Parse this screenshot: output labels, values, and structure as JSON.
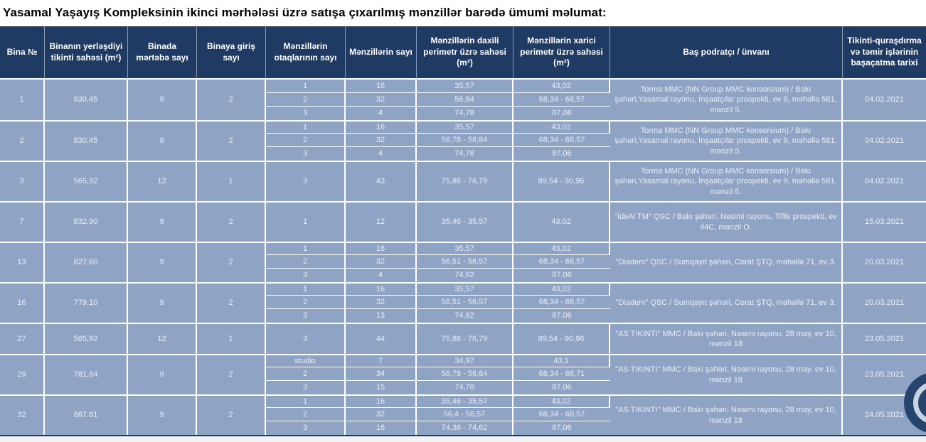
{
  "page": {
    "title": "Yasamal Yaşayış Kompleksinin ikinci mərhələsi üzrə satışa çıxarılmış mənzillər barədə ümumi məlumat:"
  },
  "colors": {
    "header_navy": "#1f3a63",
    "row_blue": "#8fa4c5",
    "cell_text": "#e9eef5",
    "grid_line": "#ffffff",
    "page_background": "#f2f3f5"
  },
  "table": {
    "columns": [
      "Bina №",
      "Binanın yerləşdiyi tikinti sahəsi (m²)",
      "Binada mərtəbə sayı",
      "Binaya giriş sayı",
      "Mənzillərin otaqlarının sayı",
      "Mənzillərin sayı",
      "Mənzillərin daxili perimetr üzrə sahəsi (m²)",
      "Mənzillərin xarici perimetr üzrə sahəsi (m²)",
      "Baş podratçı / ünvanı",
      "Tikinti-quraşdırma və təmir işlərinin başaçatma tarixi"
    ],
    "rows": [
      {
        "bina": "1",
        "sahe": "830,45",
        "mertebe": "9",
        "giris": "2",
        "subrows": [
          {
            "otaq": "1",
            "say": "16",
            "daxili": "35,57",
            "xarici": "43,02"
          },
          {
            "otaq": "2",
            "say": "32",
            "daxili": "56,84",
            "xarici": "68,34 - 68,57"
          },
          {
            "otaq": "3",
            "say": "4",
            "daxili": "74,78",
            "xarici": "87,06"
          }
        ],
        "podratci": "Torma MMC (NN Group MMC konsorsium) / Bakı şəhəri,Yasamal rayonu, İnşaatçılar prospekti, ev 9, məhəllə 581, mənzil 5.",
        "tarix": "04.02.2021"
      },
      {
        "bina": "2",
        "sahe": "830,45",
        "mertebe": "9",
        "giris": "2",
        "subrows": [
          {
            "otaq": "1",
            "say": "16",
            "daxili": "35,57",
            "xarici": "43,02"
          },
          {
            "otaq": "2",
            "say": "32",
            "daxili": "56,78 - 56,84",
            "xarici": "68,34 - 68,57"
          },
          {
            "otaq": "3",
            "say": "4",
            "daxili": "74,78",
            "xarici": "87,06"
          }
        ],
        "podratci": "Torma MMC (NN Group MMC konsorsium) / Bakı şəhəri,Yasamal rayonu, İnşaatçılar prospekti, ev 9, məhəllə 581, mənzil 5.",
        "tarix": "04.02.2021"
      },
      {
        "bina": "3",
        "sahe": "565,92",
        "mertebe": "12",
        "giris": "1",
        "subrows": [
          {
            "otaq": "3",
            "say": "43",
            "daxili": "75,88 - 76,79",
            "xarici": "89,54 - 90,96"
          }
        ],
        "podratci": "Torma MMC (NN Group MMC konsorsium) / Bakı şəhəri,Yasamal rayonu, İnşaatçılar prospekti, ev 9, məhəllə 581, mənzil 5.",
        "tarix": "04.02.2021"
      },
      {
        "bina": "7",
        "sahe": "832.90",
        "mertebe": "9",
        "giris": "2",
        "subrows": [
          {
            "otaq": "1",
            "say": "12",
            "daxili": "35,46 - 35,57",
            "xarici": "43,02"
          }
        ],
        "podratci": "\"İdeAl TM\" QSC / Bakı şəhəri, Nəsimi rayonu, Tiflis prospekti, ev 44C, mənzil O.",
        "tarix": "15.03.2021"
      },
      {
        "bina": "13",
        "sahe": "827.60",
        "mertebe": "9",
        "giris": "2",
        "subrows": [
          {
            "otaq": "1",
            "say": "16",
            "daxili": "35,57",
            "xarici": "43,02"
          },
          {
            "otaq": "2",
            "say": "32",
            "daxili": "56,51 - 56,57",
            "xarici": "68,34 - 68,57"
          },
          {
            "otaq": "3",
            "say": "4",
            "daxili": "74,62",
            "xarici": "87,06"
          }
        ],
        "podratci": "\"Diadem\" QSC / Sumqayıt şəhəri, Corat ŞTQ, məhəllə 71, ev 3.",
        "tarix": "20.03.2021"
      },
      {
        "bina": "16",
        "sahe": "779.10",
        "mertebe": "9",
        "giris": "2",
        "subrows": [
          {
            "otaq": "1",
            "say": "16",
            "daxili": "35,57",
            "xarici": "43,02"
          },
          {
            "otaq": "2",
            "say": "32",
            "daxili": "56,51 - 56,57",
            "xarici": "68,34 - 68,57"
          },
          {
            "otaq": "3",
            "say": "13",
            "daxili": "74,62",
            "xarici": "87,06"
          }
        ],
        "podratci": "\"Diadem\" QSC / Sumqayıt şəhəri, Corat ŞTQ, məhəllə 71, ev 3.",
        "tarix": "20.03.2021"
      },
      {
        "bina": "27",
        "sahe": "565,92",
        "mertebe": "12",
        "giris": "1",
        "subrows": [
          {
            "otaq": "3",
            "say": "44",
            "daxili": "75,88 - 76,79",
            "xarici": "89,54 - 90,96"
          }
        ],
        "podratci": "\"AS TIKINTI\" MMC / Bakı şəhəri, Nəsimi rayonu, 28 may, ev 10, mənzil 18",
        "tarix": "23.05.2021"
      },
      {
        "bina": "29",
        "sahe": "781,84",
        "mertebe": "9",
        "giris": "2",
        "subrows": [
          {
            "otaq": "studio",
            "say": "7",
            "daxili": "34,97",
            "xarici": "43,1"
          },
          {
            "otaq": "2",
            "say": "34",
            "daxili": "56,78 - 56,84",
            "xarici": "68,34 - 68,71"
          },
          {
            "otaq": "3",
            "say": "15",
            "daxili": "74,78",
            "xarici": "87,06"
          }
        ],
        "podratci": "\"AS TIKINTI\" MMC / Bakı şəhəri, Nəsimi rayonu, 28 may, ev 10, mənzil 18",
        "tarix": "23.05.2021"
      },
      {
        "bina": "32",
        "sahe": "867.81",
        "mertebe": "9",
        "giris": "2",
        "subrows": [
          {
            "otaq": "1",
            "say": "16",
            "daxili": "35,46 - 35,57",
            "xarici": "43,02"
          },
          {
            "otaq": "2",
            "say": "32",
            "daxili": "56,4 - 56,57",
            "xarici": "68,34 - 68,57"
          },
          {
            "otaq": "3",
            "say": "16",
            "daxili": "74,36 - 74,62",
            "xarici": "87,06"
          }
        ],
        "podratci": "\"AS TIKINTI\" MMC / Bakı şəhəri, Nəsimi rayonu, 28 may, ev 10, mənzil 18",
        "tarix": "24.05.2021"
      }
    ]
  }
}
